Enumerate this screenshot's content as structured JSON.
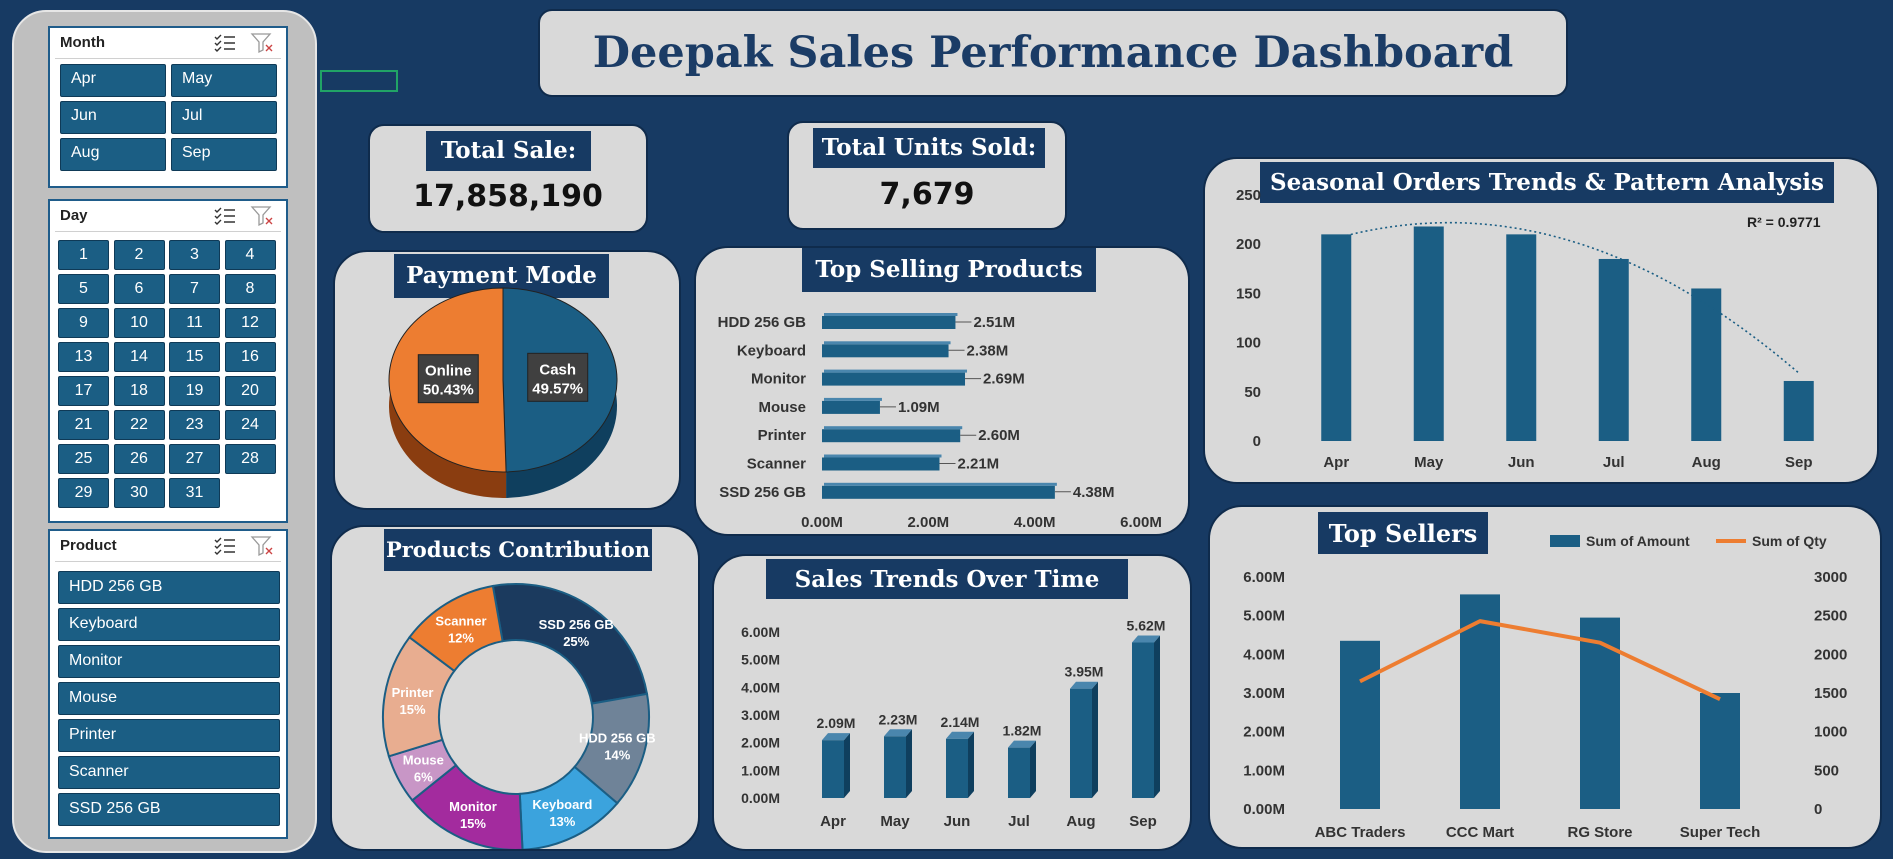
{
  "dashboard": {
    "title": "Deepak Sales Performance Dashboard"
  },
  "slicers": {
    "month": {
      "title": "Month",
      "items": [
        "Apr",
        "May",
        "Jun",
        "Jul",
        "Aug",
        "Sep"
      ]
    },
    "day": {
      "title": "Day",
      "items": [
        "1",
        "2",
        "3",
        "4",
        "5",
        "6",
        "7",
        "8",
        "9",
        "10",
        "11",
        "12",
        "13",
        "14",
        "15",
        "16",
        "17",
        "18",
        "19",
        "20",
        "21",
        "22",
        "23",
        "24",
        "25",
        "26",
        "27",
        "28",
        "29",
        "30",
        "31"
      ]
    },
    "product": {
      "title": "Product",
      "items": [
        "HDD 256 GB",
        "Keyboard",
        "Monitor",
        "Mouse",
        "Printer",
        "Scanner",
        "SSD 256 GB"
      ]
    },
    "icons": {
      "multi_select": "multi-select-icon",
      "clear_filter": "clear-filter-icon"
    }
  },
  "kpi": {
    "total_sale": {
      "label": "Total Sale:",
      "value": "17,858,190"
    },
    "total_units": {
      "label": "Total Units Sold:",
      "value": "7,679"
    }
  },
  "colors": {
    "background": "#173a63",
    "panel": "#d9d9d9",
    "accent": "#1b5e84",
    "cash": "#1b5e84",
    "online": "#ed7d31",
    "trend_line": "#ed7d31"
  },
  "chart_data": [
    {
      "id": "payment_mode",
      "type": "pie",
      "title": "Payment Mode",
      "labels": [
        "Cash",
        "Online"
      ],
      "values": [
        49.57,
        50.43
      ],
      "data_labels": [
        "49.57%",
        "50.43%"
      ],
      "colors": [
        "#1b5e84",
        "#ed7d31"
      ]
    },
    {
      "id": "top_selling_products",
      "type": "bar",
      "orientation": "horizontal",
      "title": "Top Selling Products",
      "categories": [
        "HDD 256 GB",
        "Keyboard",
        "Monitor",
        "Mouse",
        "Printer",
        "Scanner",
        "SSD 256 GB"
      ],
      "values": [
        2.51,
        2.38,
        2.69,
        1.09,
        2.6,
        2.21,
        4.38
      ],
      "data_labels": [
        "2.51M",
        "2.38M",
        "2.69M",
        "1.09M",
        "2.60M",
        "2.21M",
        "4.38M"
      ],
      "xlim": [
        0,
        6
      ],
      "ticks": [
        "0.00M",
        "2.00M",
        "4.00M",
        "6.00M"
      ],
      "unit": "M"
    },
    {
      "id": "seasonal_orders",
      "type": "bar",
      "title": "Seasonal Orders Trends & Pattern Analysis",
      "categories": [
        "Apr",
        "May",
        "Jun",
        "Jul",
        "Aug",
        "Sep"
      ],
      "values": [
        210,
        218,
        210,
        185,
        155,
        61
      ],
      "ylim": [
        0,
        250
      ],
      "ticks": [
        "0",
        "50",
        "100",
        "150",
        "200",
        "250"
      ],
      "trendline": {
        "type": "polynomial",
        "style": "dotted",
        "r2_label": "R² = 0.9771"
      }
    },
    {
      "id": "products_contribution",
      "type": "pie",
      "variant": "doughnut",
      "title": "Products Contribution",
      "labels": [
        "SSD 256 GB",
        "HDD 256 GB",
        "Keyboard",
        "Monitor",
        "Mouse",
        "Printer",
        "Scanner"
      ],
      "values": [
        25,
        14,
        13,
        15,
        6,
        15,
        12
      ],
      "data_labels": [
        "25%",
        "14%",
        "13%",
        "15%",
        "6%",
        "15%",
        "12%"
      ],
      "colors": [
        "#1b3a5e",
        "#6f8398",
        "#3ba3dd",
        "#a32b9e",
        "#c896c6",
        "#e8ad90",
        "#ed7d31"
      ]
    },
    {
      "id": "sales_trends",
      "type": "bar",
      "title": "Sales Trends Over Time",
      "categories": [
        "Apr",
        "May",
        "Jun",
        "Jul",
        "Aug",
        "Sep"
      ],
      "values": [
        2.09,
        2.23,
        2.14,
        1.82,
        3.95,
        5.62
      ],
      "data_labels": [
        "2.09M",
        "2.23M",
        "2.14M",
        "1.82M",
        "3.95M",
        "5.62M"
      ],
      "ylim": [
        0,
        6
      ],
      "ticks": [
        "0.00M",
        "1.00M",
        "2.00M",
        "3.00M",
        "4.00M",
        "5.00M",
        "6.00M"
      ],
      "unit": "M"
    },
    {
      "id": "top_sellers",
      "type": "bar",
      "title": "Top Sellers",
      "categories": [
        "ABC Traders",
        "CCC Mart",
        "RG Store",
        "Super Tech"
      ],
      "series": [
        {
          "name": "Sum of Amount",
          "type": "bar",
          "axis": "left",
          "values": [
            4.35,
            5.55,
            4.95,
            3.0
          ]
        },
        {
          "name": "Sum of Qty",
          "type": "line",
          "axis": "right",
          "values": [
            1650,
            2430,
            2150,
            1420
          ]
        }
      ],
      "ylim_left": [
        0,
        6
      ],
      "ticks_left": [
        "0.00M",
        "1.00M",
        "2.00M",
        "3.00M",
        "4.00M",
        "5.00M",
        "6.00M"
      ],
      "ylim_right": [
        0,
        3000
      ],
      "ticks_right": [
        "0",
        "500",
        "1000",
        "1500",
        "2000",
        "2500",
        "3000"
      ],
      "legend_position": "top-right"
    }
  ]
}
